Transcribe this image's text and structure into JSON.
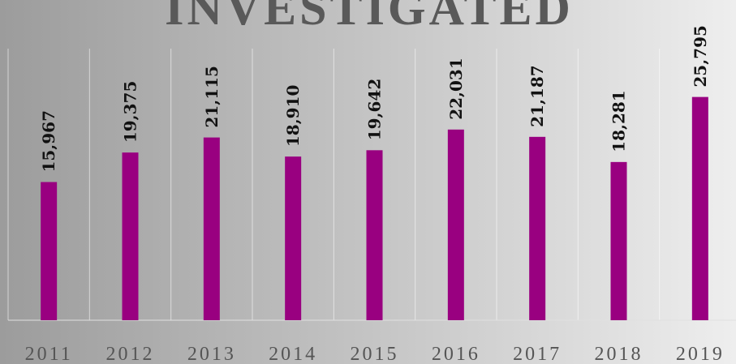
{
  "chart_data": {
    "type": "bar",
    "title": "INVESTIGATED",
    "categories": [
      "2011",
      "2012",
      "2013",
      "2014",
      "2015",
      "2016",
      "2017",
      "2018",
      "2019"
    ],
    "values": [
      15967,
      19375,
      21115,
      18910,
      19642,
      22031,
      21187,
      18281,
      25795
    ],
    "value_labels": [
      "15,967",
      "19,375",
      "21,115",
      "18,910",
      "19,642",
      "22,031",
      "21,187",
      "18,281",
      "25,795"
    ],
    "color": "#990080",
    "ylim": [
      0,
      37000
    ],
    "grid": true
  }
}
